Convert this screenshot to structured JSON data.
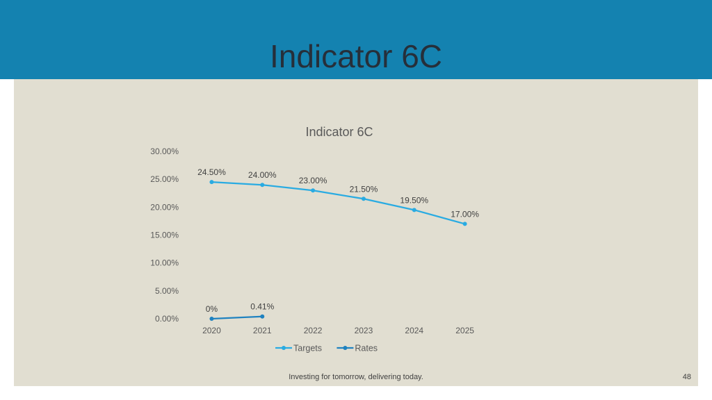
{
  "slide": {
    "title": "Indicator 6C",
    "footer": "Investing for tomorrow, delivering today.",
    "page_number": "48"
  },
  "colors": {
    "header": "#1482b0",
    "panel": "#e1ded1",
    "targets": "#29abe2",
    "rates": "#1f82c0"
  },
  "chart_data": {
    "type": "line",
    "title": "Indicator 6C",
    "xlabel": "",
    "ylabel": "",
    "ylim": [
      0,
      30
    ],
    "y_ticks": [
      "0.00%",
      "5.00%",
      "10.00%",
      "15.00%",
      "20.00%",
      "25.00%",
      "30.00%"
    ],
    "categories": [
      "2020",
      "2021",
      "2022",
      "2023",
      "2024",
      "2025"
    ],
    "legend_position": "bottom",
    "series": [
      {
        "name": "Targets",
        "values": [
          24.5,
          24.0,
          23.0,
          21.5,
          19.5,
          17.0
        ],
        "labels": [
          "24.50%",
          "24.00%",
          "23.00%",
          "21.50%",
          "19.50%",
          "17.00%"
        ]
      },
      {
        "name": "Rates",
        "values": [
          0,
          0.41,
          null,
          null,
          null,
          null
        ],
        "labels": [
          "0%",
          "0.41%",
          null,
          null,
          null,
          null
        ]
      }
    ]
  }
}
